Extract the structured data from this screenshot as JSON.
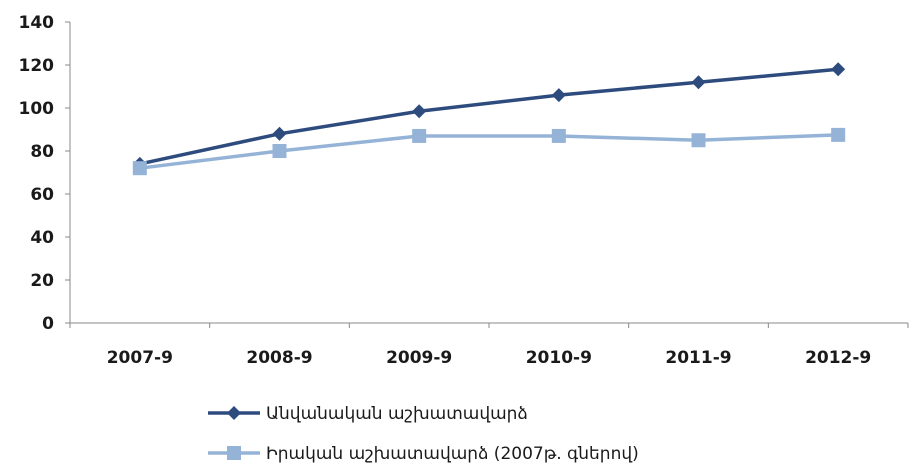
{
  "chart_data": {
    "type": "line",
    "title": "",
    "xlabel": "",
    "ylabel": "",
    "categories": [
      "2007-9",
      "2008-9",
      "2009-9",
      "2010-9",
      "2011-9",
      "2012-9"
    ],
    "ylim": [
      0,
      140
    ],
    "yticks": [
      0,
      20,
      40,
      60,
      80,
      100,
      120,
      140
    ],
    "grid": false,
    "legend_position": "bottom-left",
    "series": [
      {
        "name": "Անվանական աշխատավարձ",
        "values": [
          74,
          88,
          98.5,
          106,
          112,
          118
        ],
        "color": "#2e4b7e",
        "marker": "diamond"
      },
      {
        "name": "Իրական աշխատավարձ (2007թ. գներով)",
        "values": [
          72,
          80,
          87,
          87,
          85,
          87.5
        ],
        "color": "#95b3d7",
        "marker": "square"
      }
    ]
  }
}
